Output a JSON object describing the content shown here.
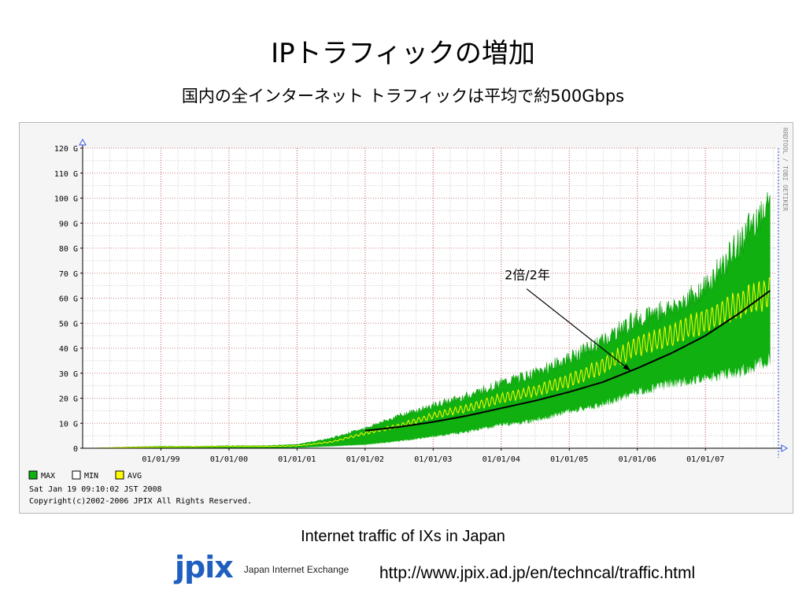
{
  "slide": {
    "title": "IPトラフィックの増加",
    "subtitle": "国内の全インターネット トラフィックは平均で約500Gbps",
    "caption": "Internet traffic of IXs in Japan",
    "logo_mark": "jpix",
    "logo_text": "Japan Internet Exchange",
    "url": "http://www.jpix.ad.jp/en/techncal/traffic.html"
  },
  "chart_data": {
    "type": "area",
    "y_tick_labels": [
      "0",
      "10 G",
      "20 G",
      "30 G",
      "40 G",
      "50 G",
      "60 G",
      "70 G",
      "80 G",
      "90 G",
      "100 G",
      "110 G",
      "120 G"
    ],
    "y_ticks": [
      0,
      10,
      20,
      30,
      40,
      50,
      60,
      70,
      80,
      90,
      100,
      110,
      120
    ],
    "ylim": [
      0,
      120
    ],
    "x_tick_labels": [
      "01/01/99",
      "01/01/00",
      "01/01/01",
      "01/01/02",
      "01/01/03",
      "01/01/04",
      "01/01/05",
      "01/01/06",
      "01/01/07"
    ],
    "x_ticks": [
      1999,
      2000,
      2001,
      2002,
      2003,
      2004,
      2005,
      2006,
      2007
    ],
    "xlim": [
      1997.85,
      2008.05
    ],
    "grid": true,
    "side_label": "RRDTOOL / TOBI OETIKER",
    "series": [
      {
        "name": "MAX",
        "color": "#10b010",
        "x": [
          1998.0,
          1998.5,
          1999.0,
          1999.5,
          2000.0,
          2000.5,
          2001.0,
          2001.5,
          2002.0,
          2002.5,
          2003.0,
          2003.5,
          2004.0,
          2004.5,
          2005.0,
          2005.5,
          2006.0,
          2006.5,
          2007.0,
          2007.5,
          2007.95
        ],
        "values": [
          0,
          0.5,
          0.8,
          0.8,
          1,
          1,
          1.5,
          4,
          8,
          13,
          17,
          21,
          26,
          30,
          36,
          43,
          52,
          56,
          64,
          82,
          100
        ]
      },
      {
        "name": "MIN",
        "color": "#ffffff",
        "x": [
          1998.0,
          1998.5,
          1999.0,
          1999.5,
          2000.0,
          2000.5,
          2001.0,
          2001.5,
          2002.0,
          2002.5,
          2003.0,
          2003.5,
          2004.0,
          2004.5,
          2005.0,
          2005.5,
          2006.0,
          2006.5,
          2007.0,
          2007.5,
          2007.95
        ],
        "values": [
          0,
          0,
          0,
          0,
          0,
          0,
          0.2,
          0.8,
          1.5,
          3,
          5,
          7,
          10,
          12,
          16,
          19,
          24,
          28,
          30,
          33,
          38
        ]
      },
      {
        "name": "AVG",
        "color": "#ffff00",
        "x": [
          1998.0,
          1998.5,
          1999.0,
          1999.5,
          2000.0,
          2000.5,
          2001.0,
          2001.5,
          2002.0,
          2002.5,
          2003.0,
          2003.5,
          2004.0,
          2004.5,
          2005.0,
          2005.5,
          2006.0,
          2006.5,
          2007.0,
          2007.5,
          2007.95
        ],
        "values": [
          0,
          0.3,
          0.5,
          0.6,
          0.7,
          0.7,
          1,
          2.5,
          6,
          9,
          13,
          16,
          20,
          23,
          27,
          33,
          41,
          45,
          51,
          58,
          62
        ]
      }
    ],
    "trend": {
      "x": [
        2002.0,
        2002.5,
        2003.0,
        2003.5,
        2004.0,
        2004.5,
        2005.0,
        2005.5,
        2006.0,
        2006.5,
        2007.0,
        2007.5,
        2007.95
      ],
      "values": [
        7,
        8.5,
        10.5,
        13,
        16,
        19,
        22.5,
        26.5,
        32,
        38,
        45,
        54,
        63
      ]
    },
    "annotation": {
      "text": "2倍/2年",
      "x": 2004.05,
      "y": 67.5,
      "arrow_to": {
        "x": 2005.9,
        "y": 31
      }
    },
    "legend": [
      {
        "label": "MAX",
        "color": "#10b010"
      },
      {
        "label": "MIN",
        "color": "#ffffff"
      },
      {
        "label": "AVG",
        "color": "#ffff00"
      }
    ],
    "footer_lines": [
      "Sat Jan 19 09:10:02 JST 2008",
      "Copyright(c)2002-2006 JPIX All Rights Reserved."
    ]
  }
}
